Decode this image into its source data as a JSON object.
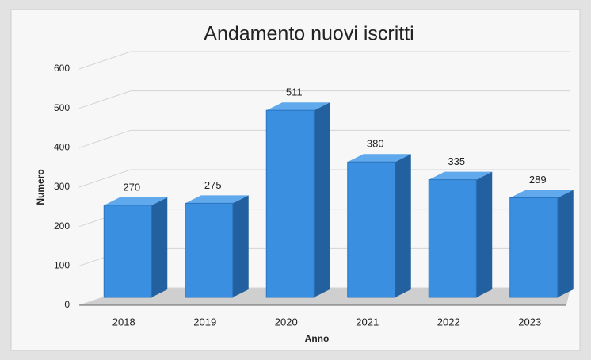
{
  "chart_data": {
    "type": "bar",
    "title": "Andamento nuovi iscritti",
    "x_label": "Anno",
    "y_label": "Numero",
    "categories": [
      "2018",
      "2019",
      "2020",
      "2021",
      "2022",
      "2023"
    ],
    "values": [
      270,
      275,
      511,
      380,
      335,
      289
    ],
    "color": "#3a8fe0",
    "ylim": [
      0,
      600
    ],
    "yticks": [
      0,
      100,
      200,
      300,
      400,
      500,
      600
    ],
    "grid": true
  }
}
